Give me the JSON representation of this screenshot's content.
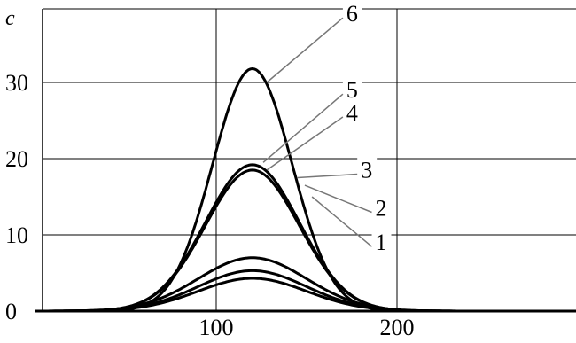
{
  "chart_data": {
    "type": "line",
    "ylabel": "c",
    "xlabel": "",
    "xlim": [
      0,
      300
    ],
    "ylim": [
      0,
      40
    ],
    "xticks": [
      {
        "value": 100,
        "label": "100"
      },
      {
        "value": 200,
        "label": "200"
      }
    ],
    "yticks": [
      {
        "value": 0,
        "label": "0"
      },
      {
        "value": 10,
        "label": "10"
      },
      {
        "value": 20,
        "label": "20"
      },
      {
        "value": 30,
        "label": "30"
      }
    ],
    "grid": true,
    "peak_x": 120,
    "series": [
      {
        "name": "1",
        "peak": 4.3,
        "width": 30,
        "label_at": [
          153,
          15
        ],
        "label_pos": [
          188,
          8
        ]
      },
      {
        "name": "2",
        "peak": 5.3,
        "width": 30,
        "label_at": [
          149,
          16.5
        ],
        "label_pos": [
          188,
          12.5
        ]
      },
      {
        "name": "3",
        "peak": 7.0,
        "width": 30,
        "label_at": [
          145,
          17.5
        ],
        "label_pos": [
          180,
          17.5
        ]
      },
      {
        "name": "4",
        "peak": 18.5,
        "width": 26,
        "label_at": [
          128,
          18.5
        ],
        "label_pos": [
          172,
          25
        ]
      },
      {
        "name": "5",
        "peak": 19.2,
        "width": 26,
        "label_at": [
          126,
          19.5
        ],
        "label_pos": [
          172,
          28
        ]
      },
      {
        "name": "6",
        "peak": 31.8,
        "width": 22,
        "label_at": [
          128,
          30
        ],
        "label_pos": [
          172,
          38
        ]
      }
    ]
  }
}
